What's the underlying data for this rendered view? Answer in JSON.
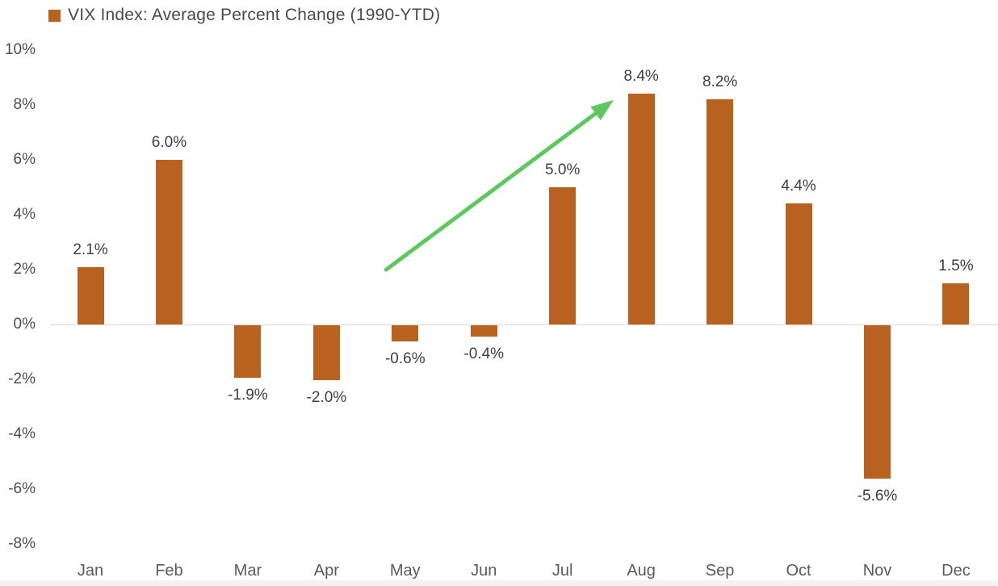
{
  "legend": {
    "label": "VIX Index: Average Percent Change (1990-YTD)"
  },
  "chart_data": {
    "type": "bar",
    "title": "VIX Index: Average Percent Change (1990-YTD)",
    "categories": [
      "Jan",
      "Feb",
      "Mar",
      "Apr",
      "May",
      "Jun",
      "Jul",
      "Aug",
      "Sep",
      "Oct",
      "Nov",
      "Dec"
    ],
    "values": [
      2.1,
      6.0,
      -1.9,
      -2.0,
      -0.6,
      -0.4,
      5.0,
      8.4,
      8.2,
      4.4,
      -5.6,
      1.5
    ],
    "data_labels": [
      "2.1%",
      "6.0%",
      "-1.9%",
      "-2.0%",
      "-0.6%",
      "-0.4%",
      "5.0%",
      "8.4%",
      "8.2%",
      "4.4%",
      "-5.6%",
      "1.5%"
    ],
    "xlabel": "",
    "ylabel": "",
    "ylim": [
      -8,
      10
    ],
    "y_ticks": [
      {
        "value": 10,
        "label": "10%"
      },
      {
        "value": 8,
        "label": "8%"
      },
      {
        "value": 6,
        "label": "6%"
      },
      {
        "value": 4,
        "label": "4%"
      },
      {
        "value": 2,
        "label": "2%"
      },
      {
        "value": 0,
        "label": "0%"
      },
      {
        "value": -2,
        "label": "-2%"
      },
      {
        "value": -4,
        "label": "-4%"
      },
      {
        "value": -6,
        "label": "-6%"
      },
      {
        "value": -8,
        "label": "-8%"
      }
    ],
    "grid": false,
    "legend_position": "top-left",
    "bar_color": "#B9621F",
    "label_color": "#3F3F3F",
    "axis_line_color": "#D9D9D9",
    "annotation_arrow": {
      "color": "#5FC75F",
      "from": {
        "month_index": 3.76,
        "percent": 2.0
      },
      "to": {
        "month_index": 6.65,
        "percent": 8.18
      }
    }
  }
}
